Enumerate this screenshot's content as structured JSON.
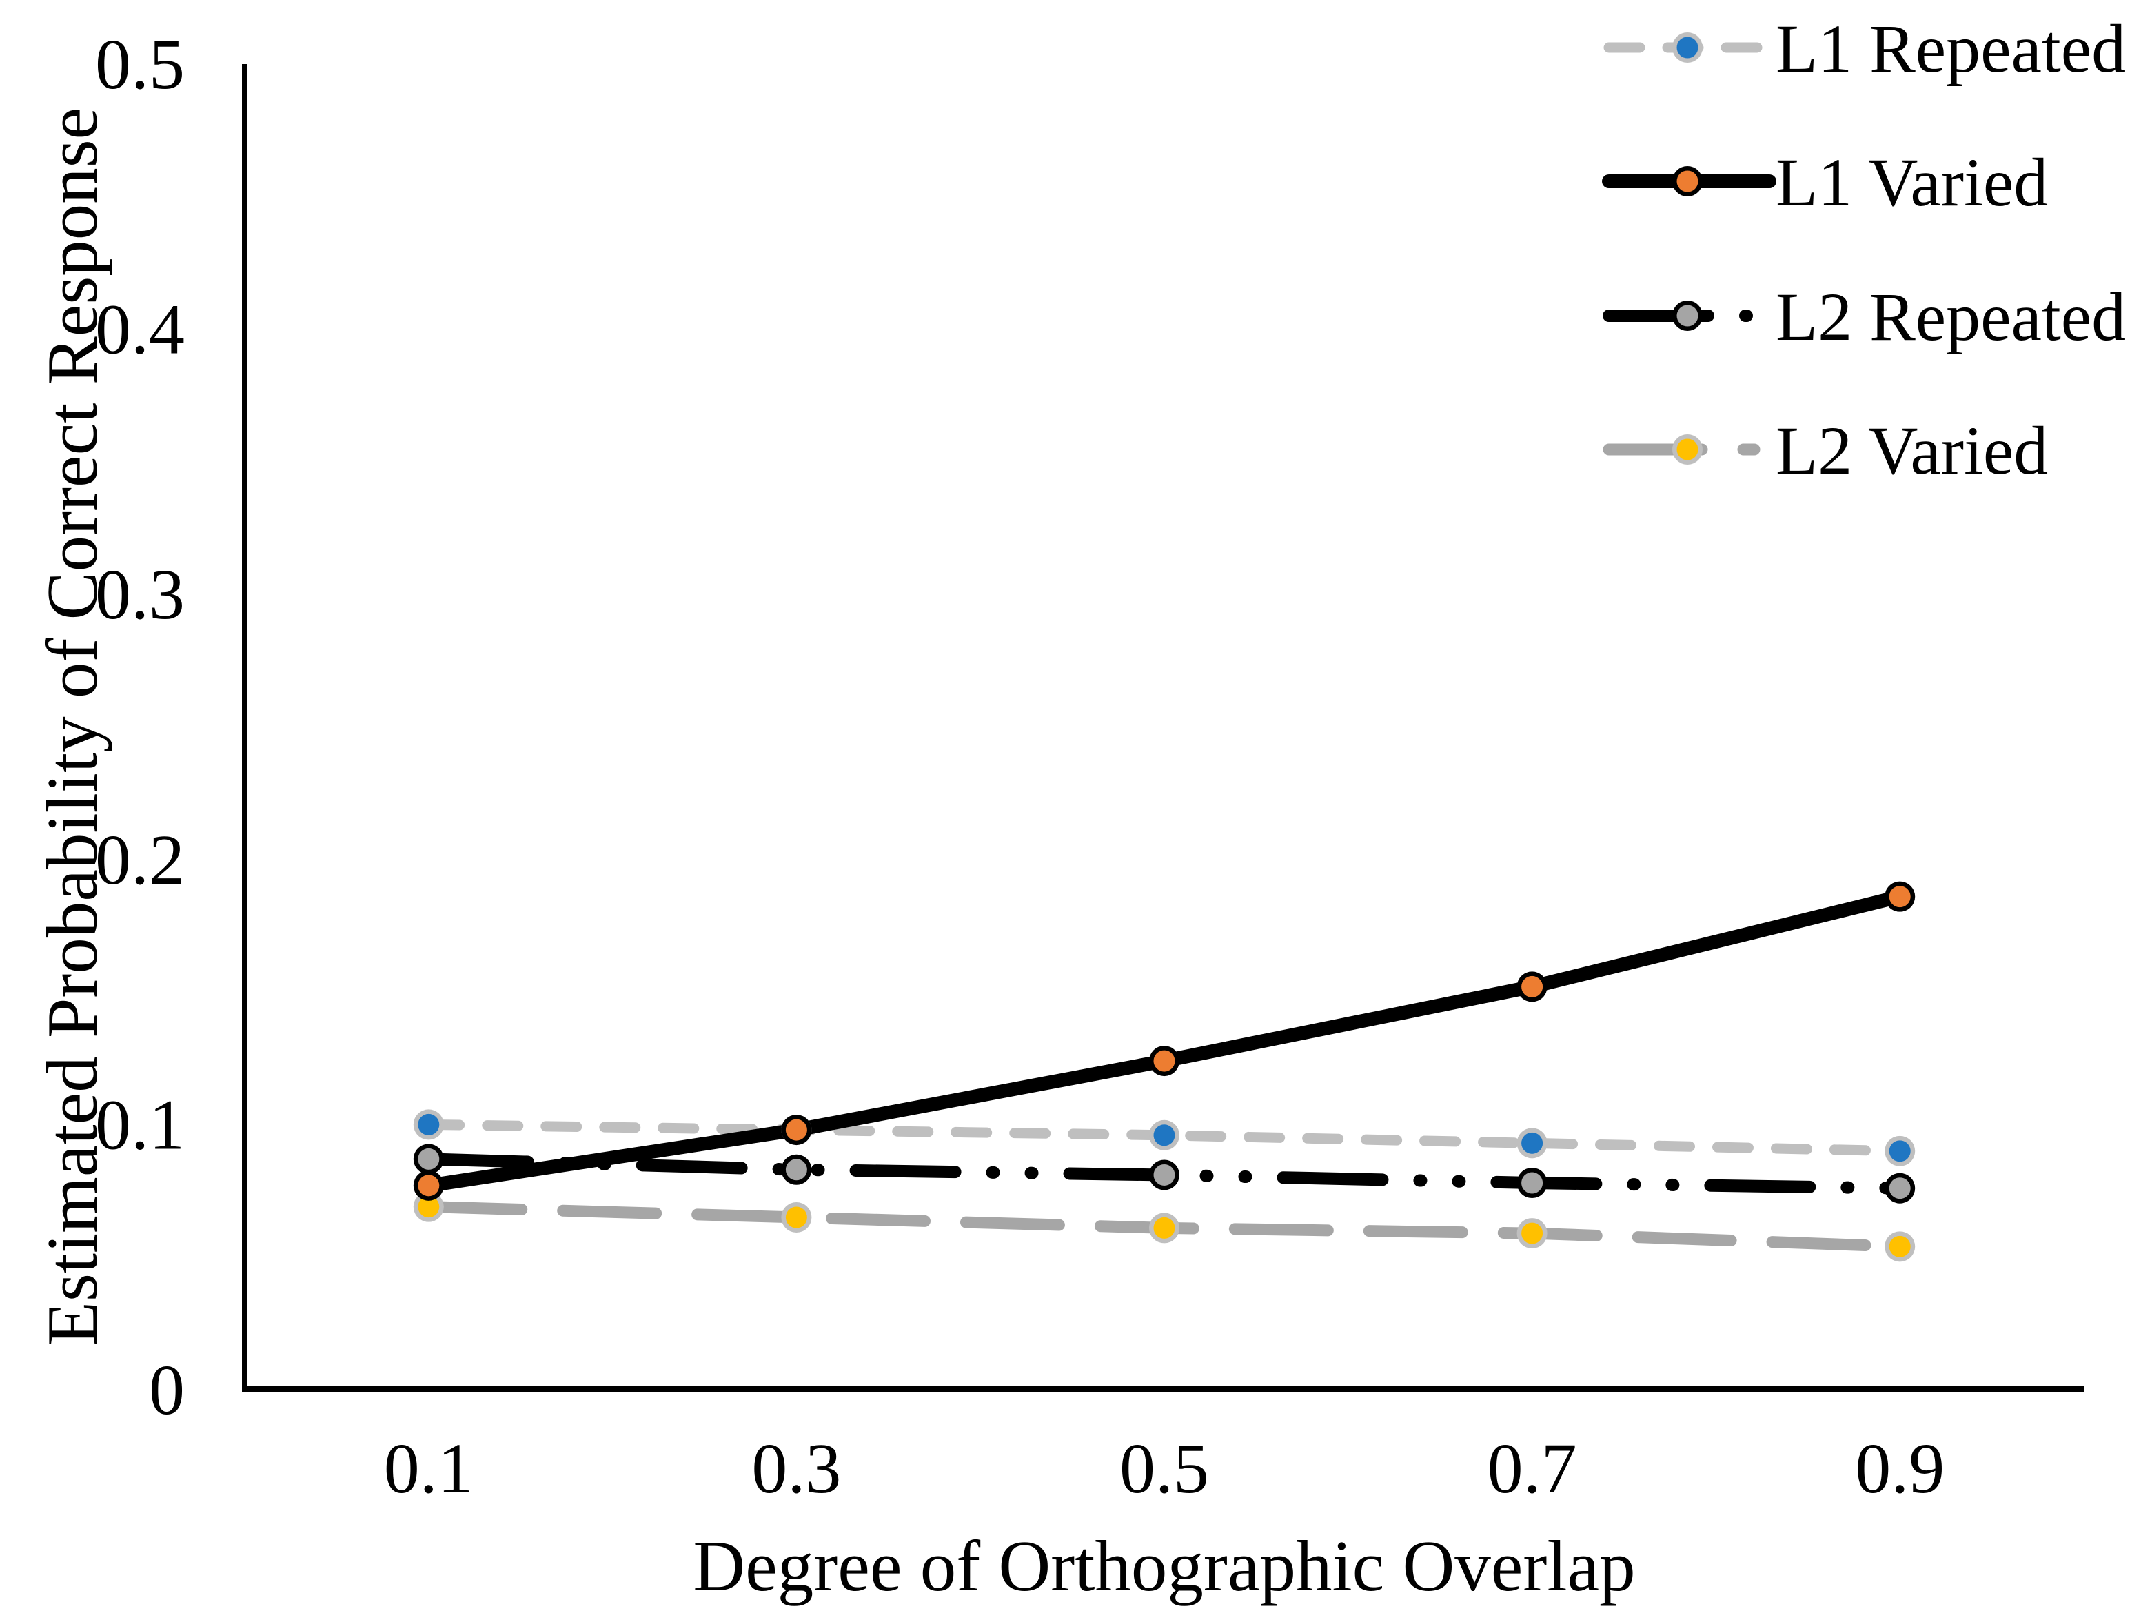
{
  "figure": {
    "background": "#FFFFFF",
    "text_color": "#000000"
  },
  "chart_data": {
    "type": "line",
    "title": "",
    "xlabel": "Degree of Orthographic Overlap",
    "ylabel": "Estimated Probability of Correct Response",
    "xlim": [
      0,
      1.0
    ],
    "ylim": [
      0,
      0.5
    ],
    "grid": false,
    "legend_position": "top-right",
    "x": [
      0.1,
      0.3,
      0.5,
      0.7,
      0.9
    ],
    "x_tick_labels": [
      "0.1",
      "0.3",
      "0.5",
      "0.7",
      "0.9"
    ],
    "y_ticks": [
      0,
      0.1,
      0.2,
      0.3,
      0.4,
      0.5
    ],
    "y_tick_labels": [
      "0",
      "0.1",
      "0.2",
      "0.3",
      "0.4",
      "0.5"
    ],
    "series": [
      {
        "name": "L1 Repeated",
        "values": [
          0.1,
          0.098,
          0.096,
          0.093,
          0.09
        ],
        "line_color": "#BFBFBF",
        "line_style": "dashed",
        "marker": "circle",
        "marker_color": "#1F76C2",
        "marker_ring_color": "#BFBFBF"
      },
      {
        "name": "L1 Varied",
        "values": [
          0.077,
          0.098,
          0.124,
          0.152,
          0.186
        ],
        "line_color": "#000000",
        "line_style": "solid",
        "marker": "circle",
        "marker_color": "#ED7D31",
        "marker_ring_color": "#000000"
      },
      {
        "name": "L2 Repeated",
        "values": [
          0.087,
          0.083,
          0.081,
          0.078,
          0.076
        ],
        "line_color": "#000000",
        "line_style": "dash-dot-dot",
        "marker": "circle",
        "marker_color": "#A5A5A5",
        "marker_ring_color": "#000000"
      },
      {
        "name": "L2 Varied",
        "values": [
          0.069,
          0.065,
          0.061,
          0.059,
          0.054
        ],
        "line_color": "#A6A6A6",
        "line_style": "long-dash",
        "marker": "circle",
        "marker_color": "#FFC000",
        "marker_ring_color": "#BFBFBF"
      }
    ]
  }
}
